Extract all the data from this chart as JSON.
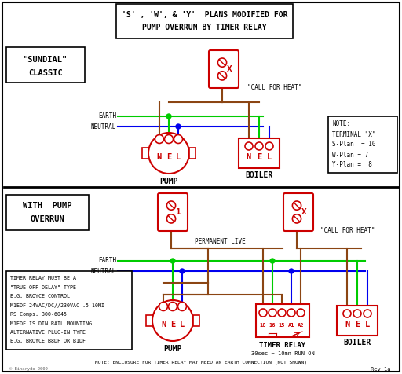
{
  "title_line1": "'S' , 'W', & 'Y'  PLANS MODIFIED FOR",
  "title_line2": "PUMP OVERRUN BY TIMER RELAY",
  "bg_color": "#ffffff",
  "wire_green": "#00cc00",
  "wire_blue": "#0000ee",
  "wire_brown": "#8B4513",
  "component_red": "#cc0000",
  "note_text_top": [
    "NOTE:",
    "TERMINAL \"X\"",
    "S-Plan  = 10",
    "W-Plan = 7",
    "Y-Plan =  8"
  ],
  "note_text_bottom": [
    "TIMER RELAY MUST BE A",
    "\"TRUE OFF DELAY\" TYPE",
    "E.G. BROYCE CONTROL",
    "M1EDF 24VAC/DC//230VAC .5-10MI",
    "RS Comps. 300-6045",
    "M1EDF IS DIN RAIL MOUNTING",
    "ALTERNATIVE PLUG-IN TYPE",
    "E.G. BROYCE B8DF OR B1DF"
  ],
  "bottom_note": "NOTE: ENCLOSURE FOR TIMER RELAY MAY NEED AN EARTH CONNECTION (NOT SHOWN)",
  "timer_relay_note": "30sec ~ 10mn RUN-ON",
  "sundial_label": [
    "\"SUNDIAL\"",
    "CLASSIC"
  ],
  "with_pump_label": [
    "WITH  PUMP",
    "OVERRUN"
  ],
  "pump_label": "PUMP",
  "boiler_label": "BOILER",
  "timer_relay_label": "TIMER RELAY",
  "call_for_heat": "\"CALL FOR HEAT\"",
  "permanent_live": "PERMANENT LIVE",
  "earth_label": "EARTH",
  "neutral_label": "NEUTRAL",
  "version_text": "Rev 1a",
  "author_text": "© Binarydo 2009"
}
